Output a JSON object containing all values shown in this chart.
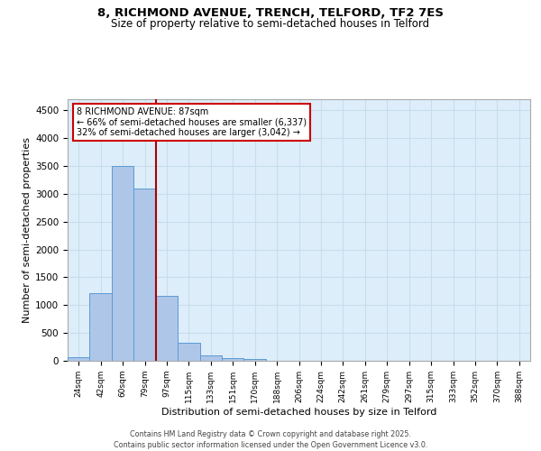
{
  "title_line1": "8, RICHMOND AVENUE, TRENCH, TELFORD, TF2 7ES",
  "title_line2": "Size of property relative to semi-detached houses in Telford",
  "xlabel": "Distribution of semi-detached houses by size in Telford",
  "ylabel": "Number of semi-detached properties",
  "footer_line1": "Contains HM Land Registry data © Crown copyright and database right 2025.",
  "footer_line2": "Contains public sector information licensed under the Open Government Licence v3.0.",
  "bin_labels": [
    "24sqm",
    "42sqm",
    "60sqm",
    "79sqm",
    "97sqm",
    "115sqm",
    "133sqm",
    "151sqm",
    "170sqm",
    "188sqm",
    "206sqm",
    "224sqm",
    "242sqm",
    "261sqm",
    "279sqm",
    "297sqm",
    "315sqm",
    "333sqm",
    "352sqm",
    "370sqm",
    "388sqm"
  ],
  "bar_values": [
    70,
    1220,
    3500,
    3090,
    1160,
    320,
    90,
    55,
    40,
    0,
    0,
    0,
    0,
    0,
    0,
    0,
    0,
    0,
    0,
    0,
    0
  ],
  "bar_color": "#aec6e8",
  "bar_edge_color": "#5b9bd5",
  "ylim": [
    0,
    4700
  ],
  "yticks": [
    0,
    500,
    1000,
    1500,
    2000,
    2500,
    3000,
    3500,
    4000,
    4500
  ],
  "red_line_bin_index": 3.5,
  "annotation_title": "8 RICHMOND AVENUE: 87sqm",
  "annotation_line2": "← 66% of semi-detached houses are smaller (6,337)",
  "annotation_line3": "32% of semi-detached houses are larger (3,042) →",
  "annotation_box_color": "#ffffff",
  "annotation_box_edge": "#cc0000",
  "red_line_color": "#aa0000",
  "grid_color": "#c8dcea",
  "background_color": "#ddeefa"
}
